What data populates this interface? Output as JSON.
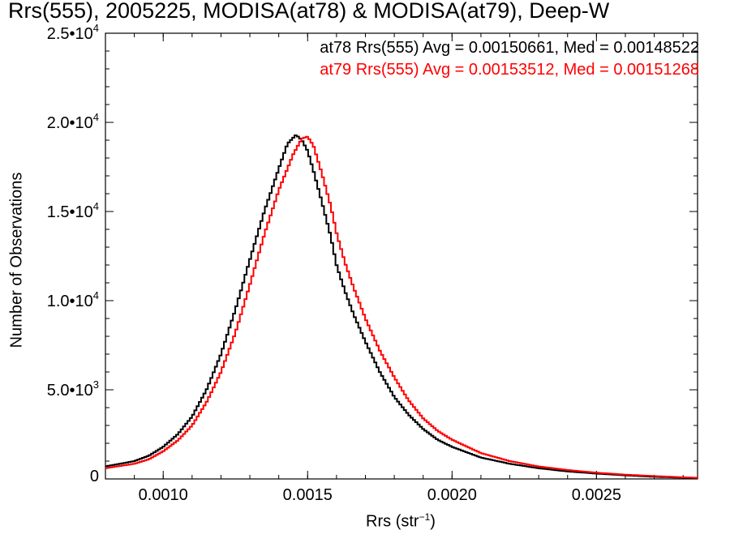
{
  "chart_data": {
    "type": "line",
    "title": "Rrs(555), 2005225, MODISA(at78) & MODISA(at79), Deep-W",
    "xlabel_main": "Rrs (str",
    "xlabel_sup": "−1",
    "xlabel_close": ")",
    "ylabel": "Number of Observations",
    "xlim": [
      0.0008,
      0.00285
    ],
    "ylim": [
      0,
      25000
    ],
    "xticks": [
      {
        "value": 0.001,
        "label": "0.0010"
      },
      {
        "value": 0.0015,
        "label": "0.0015"
      },
      {
        "value": 0.002,
        "label": "0.0020"
      },
      {
        "value": 0.0025,
        "label": "0.0025"
      }
    ],
    "yticks": [
      {
        "value": 0,
        "mant": "0",
        "exp": ""
      },
      {
        "value": 5000,
        "mant": "5.0•10",
        "exp": "3"
      },
      {
        "value": 10000,
        "mant": "1.0•10",
        "exp": "4"
      },
      {
        "value": 15000,
        "mant": "1.5•10",
        "exp": "4"
      },
      {
        "value": 20000,
        "mant": "2.0•10",
        "exp": "4"
      },
      {
        "value": 25000,
        "mant": "2.5•10",
        "exp": "4"
      }
    ],
    "legend": [
      "at78 Rrs(555) Avg = 0.00150661, Med = 0.00148522",
      "at79 Rrs(555) Avg = 0.00153512, Med = 0.00151268"
    ],
    "series": [
      {
        "name": "at78",
        "color": "#000000",
        "x": [
          0.0008,
          0.0009,
          0.00095,
          0.001,
          0.00105,
          0.0011,
          0.00115,
          0.0012,
          0.00125,
          0.0013,
          0.00135,
          0.0014,
          0.00143,
          0.00146,
          0.00148,
          0.0015,
          0.00152,
          0.00155,
          0.00158,
          0.0016,
          0.00163,
          0.00166,
          0.0017,
          0.00175,
          0.0018,
          0.00185,
          0.0019,
          0.00195,
          0.002,
          0.0021,
          0.0022,
          0.0023,
          0.0024,
          0.0025,
          0.0026,
          0.0027,
          0.0028,
          0.00285
        ],
        "y": [
          700,
          1000,
          1300,
          1800,
          2500,
          3500,
          5000,
          7000,
          9500,
          12300,
          15000,
          17400,
          18800,
          19300,
          19000,
          18400,
          17300,
          15500,
          13600,
          12000,
          10500,
          9200,
          7700,
          6000,
          4600,
          3600,
          2800,
          2200,
          1800,
          1200,
          850,
          600,
          420,
          300,
          200,
          120,
          70,
          50
        ]
      },
      {
        "name": "at79",
        "color": "#ff0000",
        "x": [
          0.0008,
          0.0009,
          0.00095,
          0.001,
          0.00105,
          0.0011,
          0.00115,
          0.0012,
          0.00125,
          0.0013,
          0.00135,
          0.0014,
          0.00145,
          0.00148,
          0.0015,
          0.00152,
          0.00155,
          0.00158,
          0.0016,
          0.00163,
          0.00166,
          0.0017,
          0.00175,
          0.0018,
          0.00185,
          0.0019,
          0.00195,
          0.002,
          0.0021,
          0.0022,
          0.0023,
          0.0024,
          0.0025,
          0.0026,
          0.0027,
          0.0028,
          0.00285
        ],
        "y": [
          600,
          850,
          1100,
          1550,
          2150,
          3000,
          4300,
          6000,
          8200,
          10900,
          13700,
          16200,
          18200,
          19100,
          19200,
          18700,
          17100,
          15300,
          13800,
          12100,
          10700,
          9000,
          7200,
          5700,
          4400,
          3400,
          2700,
          2200,
          1450,
          1000,
          700,
          500,
          350,
          240,
          160,
          90,
          60
        ]
      }
    ]
  }
}
